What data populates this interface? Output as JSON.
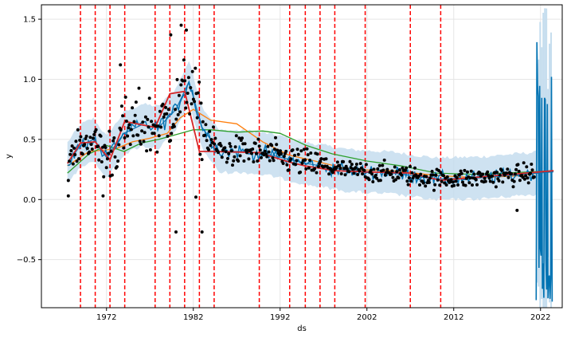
{
  "chart_data": {
    "type": "scatter",
    "title": "",
    "xlabel": "ds",
    "ylabel": "y",
    "xlim": [
      1964.5,
      2024.5
    ],
    "ylim": [
      -0.9,
      1.62
    ],
    "x_ticks": [
      {
        "value": 1972,
        "label": "1972"
      },
      {
        "value": 1982,
        "label": "1982"
      },
      {
        "value": 1992,
        "label": "1992"
      },
      {
        "value": 2002,
        "label": "2002"
      },
      {
        "value": 2012,
        "label": "2012"
      },
      {
        "value": 2022,
        "label": "2022"
      }
    ],
    "y_ticks": [
      {
        "value": -0.5,
        "label": "−0.5"
      },
      {
        "value": 0.0,
        "label": "0.0"
      },
      {
        "value": 0.5,
        "label": "0.5"
      },
      {
        "value": 1.0,
        "label": "1.0"
      },
      {
        "value": 1.5,
        "label": "1.5"
      }
    ],
    "grid": true,
    "changepoints": [
      1969.0,
      1970.7,
      1972.4,
      1974.1,
      1977.6,
      1979.3,
      1981.0,
      1982.7,
      1984.4,
      1989.6,
      1993.1,
      1994.9,
      1996.6,
      1998.3,
      2001.8,
      2007.0,
      2010.5
    ],
    "colors": {
      "observed": "#000000",
      "forecast": "#0072B2",
      "uncertainty": "#C5DDEE",
      "changepoint": "#FF0000",
      "trend": "#D62728",
      "series_orange": "#FF7F0E",
      "series_green": "#2CA02C",
      "series_blue": "#1F77B4"
    },
    "trend": {
      "x": [
        1967.5,
        1969.0,
        1970.7,
        1972.4,
        1974.1,
        1977.6,
        1979.3,
        1981.0,
        1982.7,
        1984.4,
        1989.6,
        1993.1,
        1994.9,
        1996.6,
        1998.3,
        2001.8,
        2007.0,
        2010.5,
        2023.5
      ],
      "y": [
        0.3,
        0.47,
        0.48,
        0.33,
        0.65,
        0.6,
        0.88,
        0.9,
        0.4,
        0.4,
        0.39,
        0.31,
        0.28,
        0.26,
        0.24,
        0.23,
        0.22,
        0.16,
        0.24
      ]
    },
    "series": [
      {
        "x": [
          1967.5,
          1970.0,
          1973.0,
          1975.0,
          1977.0,
          1979.0,
          1980.5,
          1982.0,
          1984.0,
          1987.0,
          1990.0,
          1993.0,
          1996.0,
          2000.0,
          2005.0,
          2010.0,
          2015.0,
          2020.0,
          2023.5
        ],
        "y": [
          0.28,
          0.4,
          0.42,
          0.48,
          0.51,
          0.55,
          0.68,
          0.75,
          0.66,
          0.63,
          0.48,
          0.37,
          0.32,
          0.25,
          0.24,
          0.2,
          0.18,
          0.2,
          0.24
        ]
      },
      {
        "x": [
          1967.5,
          1970.0,
          1972.0,
          1974.0,
          1976.0,
          1978.0,
          1980.0,
          1982.0,
          1984.0,
          1987.0,
          1990.0,
          1992.0,
          1995.0,
          1998.0,
          2002.0,
          2006.0,
          2010.0,
          2014.0,
          2018.0,
          2023.5
        ],
        "y": [
          0.22,
          0.38,
          0.45,
          0.4,
          0.47,
          0.5,
          0.54,
          0.58,
          0.58,
          0.56,
          0.57,
          0.55,
          0.45,
          0.38,
          0.32,
          0.28,
          0.22,
          0.21,
          0.22,
          0.24
        ]
      },
      {
        "x": [
          1967.5,
          1969.0,
          1970.5,
          1972.0,
          1974.0,
          1976.0,
          1978.0,
          1980.0,
          1981.5,
          1983.0,
          1985.0,
          1988.0,
          1991.0,
          1995.0,
          2000.0,
          2005.0,
          2010.0,
          2015.0,
          2020.0,
          2023.5
        ],
        "y": [
          0.3,
          0.45,
          0.5,
          0.35,
          0.55,
          0.62,
          0.6,
          0.75,
          0.98,
          0.6,
          0.4,
          0.4,
          0.37,
          0.3,
          0.24,
          0.22,
          0.17,
          0.18,
          0.21,
          0.23
        ]
      }
    ]
  }
}
